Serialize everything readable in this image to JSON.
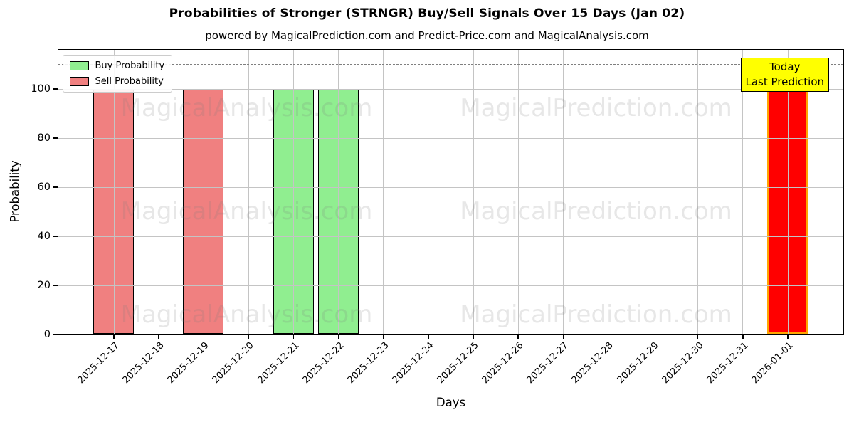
{
  "title": "Probabilities of Stronger (STRNGR) Buy/Sell Signals Over 15 Days (Jan 02)",
  "subtitle": "powered by MagicalPrediction.com and Predict-Price.com and MagicalAnalysis.com",
  "watermarks": {
    "left": "MagicalAnalysis.com",
    "right": "MagicalPrediction.com"
  },
  "annotation": {
    "line1": "Today",
    "line2": "Last Prediction",
    "bg_color": "#ffff00"
  },
  "colors": {
    "buy": "#90ee90",
    "sell": "#f08080",
    "today_fill": "#ff0000",
    "today_edge": "#ffa500",
    "grid": "#c4c4c4",
    "dashed_line": "#7f7f7f"
  },
  "chart_data": {
    "type": "bar",
    "title": "Probabilities of Stronger (STRNGR) Buy/Sell Signals Over 15 Days (Jan 02)",
    "xlabel": "Days",
    "ylabel": "Probability",
    "ylim": [
      0,
      116
    ],
    "yticks": [
      0,
      20,
      40,
      60,
      80,
      100
    ],
    "grid": true,
    "legend_position": "upper left",
    "dashed_line_y": 110,
    "categories": [
      "2025-12-17",
      "2025-12-18",
      "2025-12-19",
      "2025-12-20",
      "2025-12-21",
      "2025-12-22",
      "2025-12-23",
      "2025-12-24",
      "2025-12-25",
      "2025-12-26",
      "2025-12-27",
      "2025-12-28",
      "2025-12-29",
      "2025-12-30",
      "2025-12-31",
      "2026-01-01"
    ],
    "series": [
      {
        "name": "Buy Probability",
        "color": "#90ee90",
        "edge": "#000000",
        "values": [
          0,
          0,
          0,
          0,
          100,
          100,
          0,
          0,
          0,
          0,
          0,
          0,
          0,
          0,
          0,
          0
        ]
      },
      {
        "name": "Sell Probability",
        "color": "#f08080",
        "edge": "#000000",
        "values": [
          100,
          0,
          100,
          0,
          0,
          0,
          0,
          0,
          0,
          0,
          0,
          0,
          0,
          0,
          0,
          0
        ]
      },
      {
        "name": "Today Last Prediction",
        "color": "#ff0000",
        "edge": "#ffa500",
        "values": [
          0,
          0,
          0,
          0,
          0,
          0,
          0,
          0,
          0,
          0,
          0,
          0,
          0,
          0,
          0,
          100
        ]
      }
    ]
  }
}
